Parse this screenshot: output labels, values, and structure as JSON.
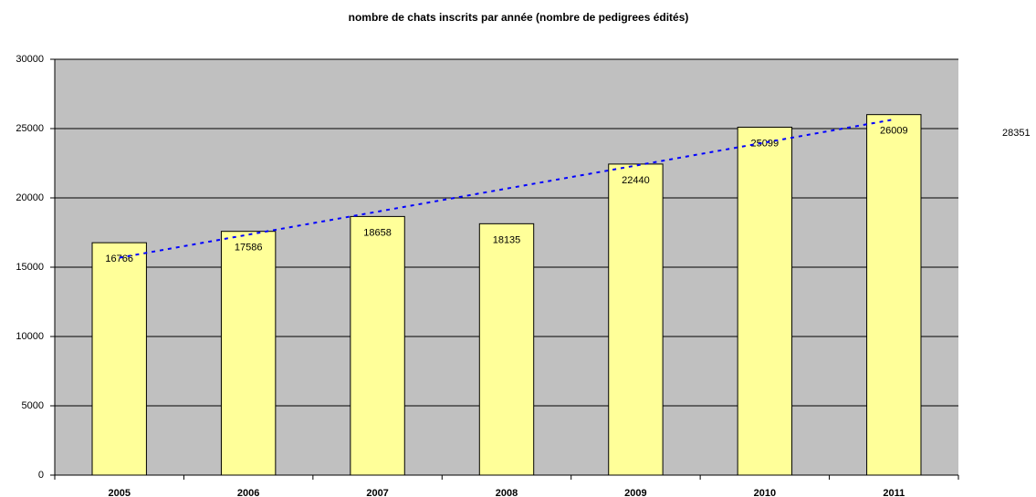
{
  "chart_data": {
    "type": "bar",
    "title": "nombre de chats inscrits par année (nombre de pedigrees édités)",
    "categories": [
      "2005",
      "2006",
      "2007",
      "2008",
      "2009",
      "2010",
      "2011"
    ],
    "values": [
      16766,
      17586,
      18658,
      18135,
      22440,
      25099,
      26009
    ],
    "color": "#ffff99",
    "ylim": [
      0,
      30000
    ],
    "yticks": [
      0,
      5000,
      10000,
      15000,
      20000,
      25000,
      30000
    ],
    "grid": true,
    "trendline": {
      "color": "#0000ff",
      "values": [
        15684,
        17346,
        19008,
        20670,
        22332,
        23994,
        25656
      ]
    },
    "annotation": "28351"
  }
}
